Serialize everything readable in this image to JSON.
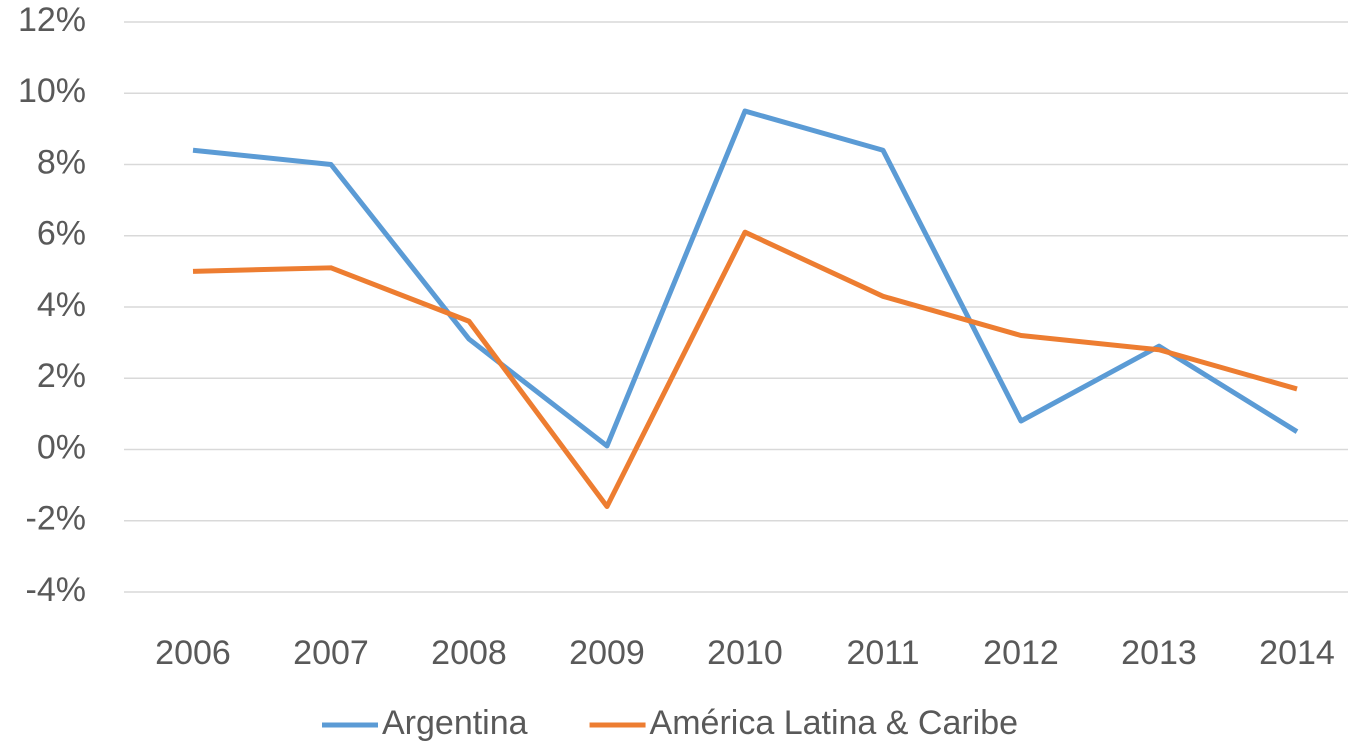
{
  "chart_data": {
    "type": "line",
    "categories": [
      "2006",
      "2007",
      "2008",
      "2009",
      "2010",
      "2011",
      "2012",
      "2013",
      "2014"
    ],
    "series": [
      {
        "name": "Argentina",
        "color": "#5b9bd5",
        "values": [
          8.4,
          8.0,
          3.1,
          0.1,
          9.5,
          8.4,
          0.8,
          2.9,
          0.5
        ]
      },
      {
        "name": "América Latina & Caribe",
        "color": "#ed7d31",
        "values": [
          5.0,
          5.1,
          3.6,
          -1.6,
          6.1,
          4.3,
          3.2,
          2.8,
          1.7
        ]
      }
    ],
    "ylim": [
      -4,
      12
    ],
    "yticks": [
      {
        "value": -4,
        "label": "-4%"
      },
      {
        "value": -2,
        "label": "-2%"
      },
      {
        "value": 0,
        "label": "0%"
      },
      {
        "value": 2,
        "label": "2%"
      },
      {
        "value": 4,
        "label": "4%"
      },
      {
        "value": 6,
        "label": "6%"
      },
      {
        "value": 8,
        "label": "8%"
      },
      {
        "value": 10,
        "label": "10%"
      },
      {
        "value": 12,
        "label": "12%"
      }
    ],
    "grid": true,
    "legend": "bottom"
  }
}
